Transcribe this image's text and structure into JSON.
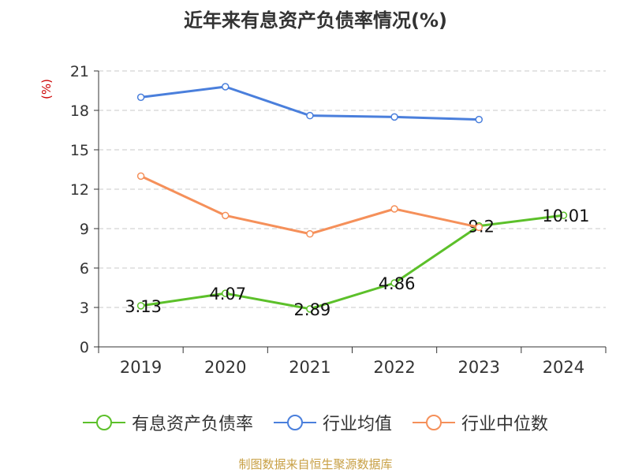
{
  "title": "近年来有息资产负债率情况(%)",
  "unit": "(%)",
  "source": "制图数据来自恒生聚源数据库",
  "chart_data": {
    "type": "line",
    "categories": [
      "2019",
      "2020",
      "2021",
      "2022",
      "2023",
      "2024"
    ],
    "ylim": [
      0,
      21
    ],
    "yticks": [
      0,
      3,
      6,
      9,
      12,
      15,
      18,
      21
    ],
    "grid": true,
    "legend_position": "bottom",
    "series": [
      {
        "name": "有息资产负债率",
        "color": "#5cc02a",
        "values": [
          3.13,
          4.07,
          2.89,
          4.86,
          9.2,
          10.01
        ],
        "labels": [
          "3.13",
          "4.07",
          "2.89",
          "4.86",
          "9.2",
          "10.01"
        ]
      },
      {
        "name": "行业均值",
        "color": "#4a7fdc",
        "values": [
          19.0,
          19.8,
          17.6,
          17.5,
          17.3,
          null
        ]
      },
      {
        "name": "行业中位数",
        "color": "#f5905a",
        "values": [
          13.0,
          10.0,
          8.6,
          10.5,
          9.1,
          null
        ]
      }
    ]
  }
}
